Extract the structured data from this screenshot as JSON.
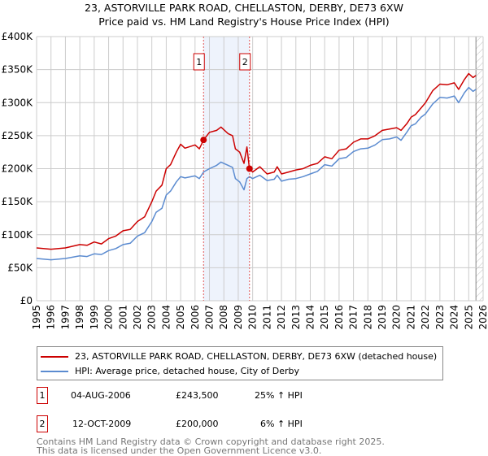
{
  "title": "23, ASTORVILLE PARK ROAD, CHELLASTON, DERBY, DE73 6XW",
  "subtitle": "Price paid vs. HM Land Registry's House Price Index (HPI)",
  "legend": [
    {
      "label": "23, ASTORVILLE PARK ROAD, CHELLASTON, DERBY, DE73 6XW (detached house)",
      "color": "#cc0000"
    },
    {
      "label": "HPI: Average price, detached house, City of Derby",
      "color": "#5b8bd0"
    }
  ],
  "transactions": [
    {
      "num": "1",
      "date": "04-AUG-2006",
      "price": "£243,500",
      "hpi": "25% ↑ HPI"
    },
    {
      "num": "2",
      "date": "12-OCT-2009",
      "price": "£200,000",
      "hpi": "6% ↑ HPI"
    }
  ],
  "footer": [
    "Contains HM Land Registry data © Crown copyright and database right 2025.",
    "This data is licensed under the Open Government Licence v3.0."
  ],
  "chart_data": {
    "type": "line",
    "title": "23, ASTORVILLE PARK ROAD, CHELLASTON, DERBY, DE73 6XW",
    "subtitle": "Price paid vs. HM Land Registry's House Price Index (HPI)",
    "xlim": [
      1995,
      2026
    ],
    "ylim": [
      0,
      400000
    ],
    "grid": true,
    "legend_position": "below",
    "yticks": [
      0,
      50000,
      100000,
      150000,
      200000,
      250000,
      300000,
      350000,
      400000
    ],
    "ytick_labels": [
      "£0",
      "£50K",
      "£100K",
      "£150K",
      "£200K",
      "£250K",
      "£300K",
      "£350K",
      "£400K"
    ],
    "xticks": [
      "1995",
      "1996",
      "1997",
      "1998",
      "1999",
      "2000",
      "2001",
      "2002",
      "2003",
      "2004",
      "2005",
      "2006",
      "2007",
      "2008",
      "2009",
      "2010",
      "2011",
      "2012",
      "2013",
      "2014",
      "2015",
      "2016",
      "2017",
      "2018",
      "2019",
      "2020",
      "2021",
      "2022",
      "2023",
      "2024",
      "2025",
      "2026"
    ],
    "shaded_region": [
      2006.59,
      2009.78
    ],
    "forecast_hatch_from": 2025.5,
    "markers": [
      {
        "label": "1",
        "x": 2006.59,
        "y": 243500
      },
      {
        "label": "2",
        "x": 2009.78,
        "y": 200000
      }
    ],
    "series": [
      {
        "name": "23, ASTORVILLE PARK ROAD, CHELLASTON, DERBY, DE73 6XW (detached house)",
        "color": "#cc0000",
        "x": [
          1995,
          1996,
          1997,
          1998,
          1998.5,
          1999,
          1999.5,
          2000,
          2000.5,
          2001,
          2001.5,
          2002,
          2002.5,
          2003,
          2003.3,
          2003.7,
          2004,
          2004.3,
          2004.7,
          2005,
          2005.3,
          2006,
          2006.3,
          2006.59,
          2007,
          2007.5,
          2007.8,
          2008.3,
          2008.6,
          2008.8,
          2009.1,
          2009.4,
          2009.6,
          2009.78,
          2010,
          2010.5,
          2011,
          2011.5,
          2011.7,
          2012,
          2012.5,
          2013,
          2013.5,
          2014,
          2014.5,
          2015,
          2015.5,
          2016,
          2016.5,
          2017,
          2017.5,
          2018,
          2018.5,
          2019,
          2019.5,
          2020,
          2020.3,
          2020.7,
          2021,
          2021.3,
          2021.7,
          2022,
          2022.5,
          2023,
          2023.5,
          2024,
          2024.3,
          2024.7,
          2025,
          2025.3,
          2025.5
        ],
        "y": [
          80000,
          78000,
          80000,
          85000,
          84000,
          89000,
          86000,
          94000,
          98000,
          106000,
          108000,
          120000,
          127000,
          150000,
          166000,
          175000,
          200000,
          206000,
          225000,
          237000,
          231000,
          236000,
          230000,
          243500,
          255000,
          258000,
          263000,
          253000,
          250000,
          230000,
          225000,
          208000,
          233000,
          200000,
          195000,
          203000,
          192000,
          195000,
          203000,
          192000,
          195000,
          198000,
          200000,
          205000,
          208000,
          218000,
          215000,
          228000,
          230000,
          240000,
          245000,
          245000,
          250000,
          258000,
          260000,
          262000,
          258000,
          268000,
          278000,
          282000,
          292000,
          300000,
          318000,
          328000,
          327000,
          330000,
          320000,
          335000,
          344000,
          338000,
          341000
        ]
      },
      {
        "name": "HPI: Average price, detached house, City of Derby",
        "color": "#5b8bd0",
        "x": [
          1995,
          1996,
          1997,
          1998,
          1998.5,
          1999,
          1999.5,
          2000,
          2000.5,
          2001,
          2001.5,
          2002,
          2002.5,
          2003,
          2003.3,
          2003.7,
          2004,
          2004.3,
          2004.7,
          2005,
          2005.3,
          2006,
          2006.3,
          2006.59,
          2007,
          2007.5,
          2007.8,
          2008.3,
          2008.6,
          2008.8,
          2009.1,
          2009.4,
          2009.6,
          2009.78,
          2010,
          2010.5,
          2011,
          2011.5,
          2011.7,
          2012,
          2012.5,
          2013,
          2013.5,
          2014,
          2014.5,
          2015,
          2015.5,
          2016,
          2016.5,
          2017,
          2017.5,
          2018,
          2018.5,
          2019,
          2019.5,
          2020,
          2020.3,
          2020.7,
          2021,
          2021.3,
          2021.7,
          2022,
          2022.5,
          2023,
          2023.5,
          2024,
          2024.3,
          2024.7,
          2025,
          2025.3,
          2025.5
        ],
        "y": [
          64000,
          62000,
          64000,
          68000,
          67000,
          71000,
          70000,
          76000,
          79000,
          85000,
          87000,
          98000,
          103000,
          120000,
          134000,
          140000,
          160000,
          166000,
          180000,
          188000,
          186000,
          189000,
          185000,
          195000,
          200000,
          205000,
          210000,
          205000,
          202000,
          185000,
          180000,
          168000,
          185000,
          188000,
          185000,
          190000,
          182000,
          184000,
          190000,
          181000,
          184000,
          185000,
          188000,
          192000,
          196000,
          206000,
          204000,
          215000,
          217000,
          226000,
          230000,
          231000,
          236000,
          244000,
          245000,
          248000,
          243000,
          255000,
          265000,
          268000,
          278000,
          283000,
          298000,
          308000,
          307000,
          310000,
          300000,
          315000,
          323000,
          317000,
          320000
        ]
      }
    ]
  }
}
